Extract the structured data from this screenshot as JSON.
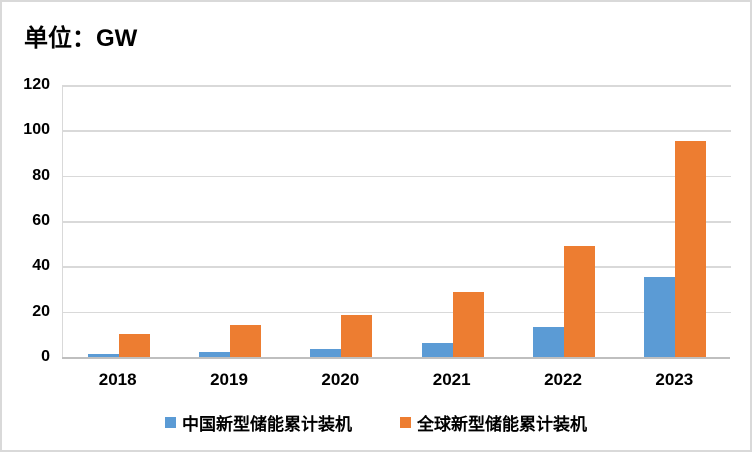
{
  "title": "单位：GW",
  "chart_data": {
    "type": "bar",
    "title": "单位：GW",
    "unit": "GW",
    "xlabel": "",
    "ylabel": "",
    "categories": [
      "2018",
      "2019",
      "2020",
      "2021",
      "2022",
      "2023"
    ],
    "series": [
      {
        "key": "china",
        "name": "中国新型储能累计装机",
        "color": "#5B9BD5",
        "values": [
          1.3,
          2.1,
          3.5,
          6.2,
          13.4,
          35.2
        ]
      },
      {
        "key": "global",
        "name": "全球新型储能累计装机",
        "color": "#ED7D31",
        "values": [
          10.1,
          14.0,
          18.6,
          28.7,
          49.0,
          95.4
        ]
      }
    ],
    "ylim": [
      0,
      120
    ],
    "yticks": [
      0,
      20,
      40,
      60,
      80,
      100,
      120
    ],
    "grid": true,
    "legend_position": "bottom",
    "colors": {
      "gridline": "#D9D9D9",
      "axis": "#BFBFBF",
      "text": "#000000",
      "border": "#D9D9D9",
      "background": "#FFFFFF"
    }
  }
}
